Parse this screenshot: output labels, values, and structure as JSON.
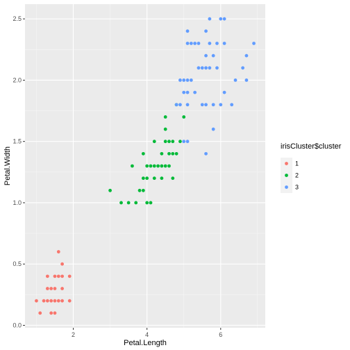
{
  "chart_data": {
    "type": "scatter",
    "xlabel": "Petal.Length",
    "ylabel": "Petal.Width",
    "xlim": [
      0.69,
      7.21
    ],
    "ylim": [
      -0.02,
      2.62
    ],
    "x_ticks": [
      2,
      4,
      6
    ],
    "x_tick_labels": [
      "2",
      "4",
      "6"
    ],
    "y_ticks": [
      0.0,
      0.5,
      1.0,
      1.5,
      2.0,
      2.5
    ],
    "y_tick_labels": [
      "0.0",
      "0.5",
      "1.0",
      "1.5",
      "2.0",
      "2.5"
    ],
    "grid": true,
    "legend": {
      "title": "irisCluster$cluster",
      "placement": "right",
      "entries": [
        {
          "label": "1",
          "color": "#F8766D"
        },
        {
          "label": "2",
          "color": "#00BA38"
        },
        {
          "label": "3",
          "color": "#619CFF"
        }
      ]
    },
    "series": [
      {
        "name": "1",
        "color": "#F8766D",
        "points": [
          [
            1.0,
            0.2
          ],
          [
            1.1,
            0.1
          ],
          [
            1.2,
            0.2
          ],
          [
            1.3,
            0.2
          ],
          [
            1.3,
            0.3
          ],
          [
            1.3,
            0.4
          ],
          [
            1.4,
            0.1
          ],
          [
            1.4,
            0.2
          ],
          [
            1.4,
            0.3
          ],
          [
            1.5,
            0.1
          ],
          [
            1.5,
            0.2
          ],
          [
            1.5,
            0.3
          ],
          [
            1.5,
            0.4
          ],
          [
            1.6,
            0.2
          ],
          [
            1.6,
            0.4
          ],
          [
            1.6,
            0.6
          ],
          [
            1.7,
            0.2
          ],
          [
            1.7,
            0.3
          ],
          [
            1.7,
            0.4
          ],
          [
            1.7,
            0.5
          ],
          [
            1.9,
            0.2
          ],
          [
            1.9,
            0.4
          ]
        ]
      },
      {
        "name": "2",
        "color": "#00BA38",
        "points": [
          [
            3.0,
            1.1
          ],
          [
            3.3,
            1.0
          ],
          [
            3.5,
            1.0
          ],
          [
            3.6,
            1.3
          ],
          [
            3.7,
            1.0
          ],
          [
            3.8,
            1.1
          ],
          [
            3.9,
            1.1
          ],
          [
            3.9,
            1.2
          ],
          [
            3.9,
            1.4
          ],
          [
            4.0,
            1.0
          ],
          [
            4.0,
            1.2
          ],
          [
            4.0,
            1.3
          ],
          [
            4.1,
            1.0
          ],
          [
            4.1,
            1.3
          ],
          [
            4.2,
            1.2
          ],
          [
            4.2,
            1.3
          ],
          [
            4.2,
            1.5
          ],
          [
            4.3,
            1.3
          ],
          [
            4.4,
            1.2
          ],
          [
            4.4,
            1.3
          ],
          [
            4.4,
            1.4
          ],
          [
            4.5,
            1.3
          ],
          [
            4.5,
            1.5
          ],
          [
            4.5,
            1.6
          ],
          [
            4.5,
            1.7
          ],
          [
            4.6,
            1.3
          ],
          [
            4.6,
            1.4
          ],
          [
            4.6,
            1.5
          ],
          [
            4.7,
            1.2
          ],
          [
            4.7,
            1.4
          ],
          [
            4.7,
            1.5
          ],
          [
            4.8,
            1.4
          ],
          [
            4.8,
            1.8
          ],
          [
            4.9,
            1.5
          ],
          [
            5.0,
            1.7
          ]
        ]
      },
      {
        "name": "3",
        "color": "#619CFF",
        "points": [
          [
            4.8,
            1.8
          ],
          [
            4.9,
            1.8
          ],
          [
            4.9,
            2.0
          ],
          [
            5.0,
            1.5
          ],
          [
            5.0,
            1.9
          ],
          [
            5.0,
            2.0
          ],
          [
            5.1,
            1.5
          ],
          [
            5.1,
            1.8
          ],
          [
            5.1,
            1.9
          ],
          [
            5.1,
            2.0
          ],
          [
            5.1,
            2.3
          ],
          [
            5.1,
            2.4
          ],
          [
            5.2,
            2.0
          ],
          [
            5.2,
            2.3
          ],
          [
            5.3,
            1.9
          ],
          [
            5.3,
            2.3
          ],
          [
            5.4,
            2.1
          ],
          [
            5.4,
            2.3
          ],
          [
            5.5,
            1.8
          ],
          [
            5.5,
            2.1
          ],
          [
            5.6,
            1.4
          ],
          [
            5.6,
            1.8
          ],
          [
            5.6,
            2.1
          ],
          [
            5.6,
            2.2
          ],
          [
            5.6,
            2.4
          ],
          [
            5.7,
            2.1
          ],
          [
            5.7,
            2.3
          ],
          [
            5.7,
            2.5
          ],
          [
            5.8,
            1.6
          ],
          [
            5.8,
            1.8
          ],
          [
            5.8,
            2.2
          ],
          [
            5.9,
            2.1
          ],
          [
            5.9,
            2.3
          ],
          [
            6.0,
            1.8
          ],
          [
            6.0,
            2.5
          ],
          [
            6.1,
            1.9
          ],
          [
            6.1,
            2.3
          ],
          [
            6.1,
            2.5
          ],
          [
            6.3,
            1.8
          ],
          [
            6.4,
            2.0
          ],
          [
            6.6,
            2.1
          ],
          [
            6.7,
            2.0
          ],
          [
            6.7,
            2.2
          ],
          [
            6.9,
            2.3
          ]
        ]
      }
    ]
  }
}
